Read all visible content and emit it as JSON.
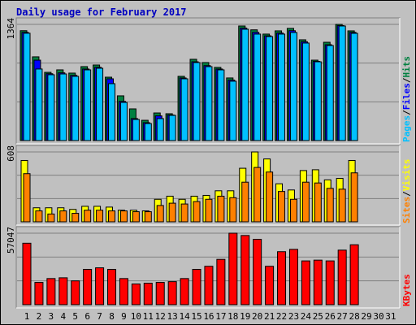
{
  "chart_data": [
    {
      "type": "bar",
      "title": "Daily usage for February 2017",
      "ylim": [
        0,
        1364
      ],
      "yticks": [
        1364
      ],
      "legend_separator": "/",
      "series": [
        {
          "name": "Hits",
          "color": "#008040",
          "values": [
            1290,
            983,
            801,
            830,
            792,
            868,
            887,
            744,
            525,
            372,
            238,
            324,
            315,
            754,
            954,
            916,
            859,
            735,
            1345,
            1300,
            1250,
            1288,
            1317,
            1183,
            944,
            1154,
            1364,
            1288,
            null,
            null,
            null
          ]
        },
        {
          "name": "Files",
          "color": "#0000ff",
          "values": [
            1270,
            944,
            785,
            795,
            765,
            840,
            860,
            725,
            460,
            258,
            210,
            290,
            300,
            735,
            925,
            880,
            840,
            710,
            1320,
            1270,
            1230,
            1262,
            1290,
            1160,
            930,
            1125,
            1350,
            1270,
            null,
            null,
            null
          ]
        },
        {
          "name": "Pages",
          "color": "#00c0ff",
          "values": [
            1260,
            840,
            773,
            782,
            754,
            830,
            849,
            668,
            448,
            248,
            200,
            258,
            296,
            725,
            916,
            868,
            830,
            697,
            1307,
            1250,
            1221,
            1250,
            1269,
            1145,
            925,
            1116,
            1345,
            1259,
            null,
            null,
            null
          ]
        }
      ]
    },
    {
      "type": "bar",
      "ylim": [
        0,
        608
      ],
      "yticks": [
        608
      ],
      "legend_separator": "/",
      "series": [
        {
          "name": "Visits",
          "color": "#ffff00",
          "values": [
            534,
            122,
            122,
            122,
            108,
            135,
            135,
            128,
            101,
            101,
            95,
            196,
            223,
            196,
            223,
            230,
            270,
            270,
            466,
            608,
            547,
            331,
            277,
            446,
            453,
            365,
            378,
            534,
            null,
            null,
            null
          ]
        },
        {
          "name": "Sites",
          "color": "#ff8000",
          "values": [
            419,
            95,
            68,
            95,
            74,
            101,
            101,
            95,
            95,
            88,
            88,
            142,
            162,
            155,
            176,
            196,
            223,
            210,
            345,
            473,
            433,
            264,
            196,
            345,
            338,
            291,
            284,
            426,
            null,
            null,
            null
          ]
        }
      ]
    },
    {
      "type": "bar",
      "ylim": [
        0,
        57047
      ],
      "yticks": [
        57047
      ],
      "categories": [
        "1",
        "2",
        "3",
        "4",
        "5",
        "6",
        "7",
        "8",
        "9",
        "10",
        "11",
        "12",
        "13",
        "14",
        "15",
        "16",
        "17",
        "18",
        "19",
        "20",
        "21",
        "22",
        "23",
        "24",
        "25",
        "26",
        "27",
        "28",
        "29",
        "30",
        "31"
      ],
      "category_colors": [
        "#000000",
        "#000000",
        "#000000",
        "#008040",
        "#008040",
        "#000000",
        "#000000",
        "#000000",
        "#000000",
        "#000000",
        "#008040",
        "#008040",
        "#000000",
        "#000000",
        "#000000",
        "#000000",
        "#000000",
        "#008040",
        "#008040",
        "#000000",
        "#000000",
        "#000000",
        "#000000",
        "#000000",
        "#008040",
        "#008040",
        "#000000",
        "#000000",
        "#000000",
        "#000000",
        "#000000"
      ],
      "series": [
        {
          "name": "KBytes",
          "color": "#ff0000",
          "values": [
            49050,
            17780,
            20850,
            21460,
            19010,
            28200,
            29430,
            28200,
            20850,
            16550,
            17170,
            17780,
            18390,
            20850,
            28200,
            30650,
            36170,
            57047,
            55200,
            52130,
            30650,
            42300,
            44140,
            34940,
            35550,
            34940,
            43530,
            47820,
            null,
            null,
            null
          ]
        }
      ]
    }
  ]
}
